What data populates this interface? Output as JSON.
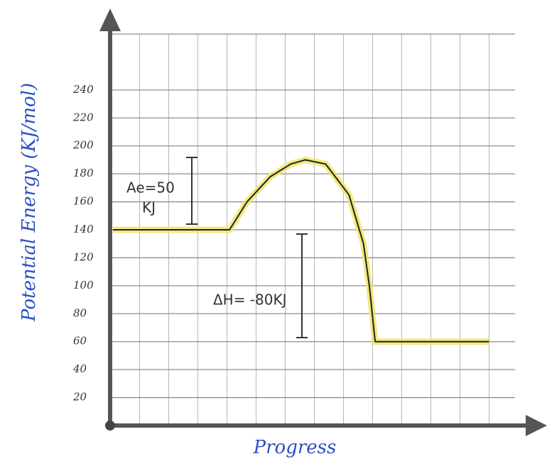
{
  "chart_data": {
    "type": "line",
    "x_label": "Progress",
    "y_label": "Potential Energy (KJ/mol)",
    "annotations": [
      "Ae=50",
      "KJ",
      "ΔH= -80KJ"
    ],
    "x": [
      0.1,
      4.1,
      4.7,
      5.5,
      6.2,
      6.7,
      7.4,
      8.2,
      8.7,
      8.9,
      9.1,
      13.0
    ],
    "values": [
      140,
      140,
      160,
      178,
      187,
      190,
      187,
      165,
      130,
      100,
      60,
      60
    ],
    "color": "#222222",
    "highlight": "#efe56a",
    "xlim": [
      0,
      14
    ],
    "ylim": [
      0,
      280
    ],
    "yticks": [
      20,
      40,
      60,
      80,
      100,
      120,
      140,
      160,
      180,
      200,
      220,
      240
    ],
    "grid": true
  }
}
